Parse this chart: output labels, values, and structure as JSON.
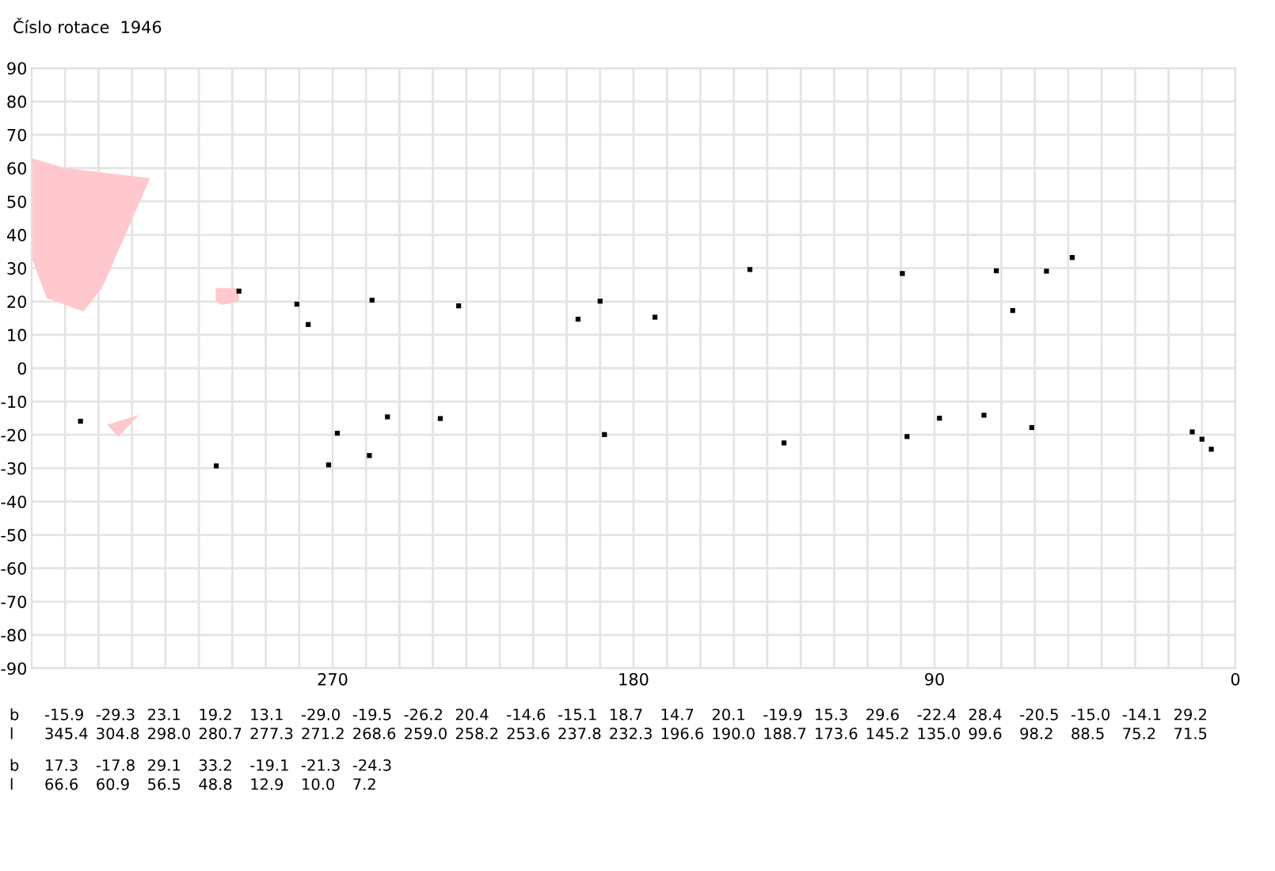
{
  "chart_data": {
    "type": "scatter",
    "title": "Číslo rotace  1946",
    "xlim": [
      360,
      0
    ],
    "xticks": [
      {
        "value": 350,
        "label": null
      },
      {
        "value": 340,
        "label": null
      },
      {
        "value": 330,
        "label": null
      },
      {
        "value": 320,
        "label": null
      },
      {
        "value": 310,
        "label": null
      },
      {
        "value": 300,
        "label": null
      },
      {
        "value": 290,
        "label": null
      },
      {
        "value": 280,
        "label": null
      },
      270,
      {
        "value": 260,
        "label": null
      },
      {
        "value": 250,
        "label": null
      },
      {
        "value": 240,
        "label": null
      },
      {
        "value": 230,
        "label": null
      },
      {
        "value": 220,
        "label": null
      },
      {
        "value": 210,
        "label": null
      },
      {
        "value": 200,
        "label": null
      },
      {
        "value": 190,
        "label": null
      },
      180,
      {
        "value": 170,
        "label": null
      },
      {
        "value": 160,
        "label": null
      },
      {
        "value": 150,
        "label": null
      },
      {
        "value": 140,
        "label": null
      },
      {
        "value": 130,
        "label": null
      },
      {
        "value": 120,
        "label": null
      },
      {
        "value": 110,
        "label": null
      },
      {
        "value": 100,
        "label": null
      },
      90,
      {
        "value": 80,
        "label": null
      },
      {
        "value": 70,
        "label": null
      },
      {
        "value": 60,
        "label": null
      },
      {
        "value": 50,
        "label": null
      },
      {
        "value": 40,
        "label": null
      },
      {
        "value": 30,
        "label": null
      },
      {
        "value": 20,
        "label": null
      },
      {
        "value": 10,
        "label": null
      },
      0
    ],
    "ylim": [
      -90,
      90
    ],
    "yticks": [
      -90,
      -80,
      -70,
      -60,
      -50,
      -40,
      -30,
      -20,
      -10,
      0,
      10,
      20,
      30,
      40,
      50,
      60,
      70,
      80,
      90
    ],
    "grid": true,
    "annotations": [
      "b",
      "-15.9",
      "-29.3",
      "23.1",
      "19.2",
      "13.1",
      "-29.0",
      "-19.5",
      "-26.2",
      "20.4",
      "-14.6",
      "-15.1",
      "18.7",
      "14.7",
      "20.1",
      "-19.9",
      "15.3",
      "29.6",
      "-22.4",
      "28.4",
      "-20.5",
      "-15.0",
      "-14.1",
      "29.2",
      "l",
      "345.4",
      "304.8",
      "298.0",
      "280.7",
      "277.3",
      "271.2",
      "268.6",
      "259.0",
      "258.2",
      "253.6",
      "237.8",
      "232.3",
      "196.6",
      "190.0",
      "188.7",
      "173.6",
      "145.2",
      "135.0",
      "99.6",
      "98.2",
      "88.5",
      "75.2",
      "71.5",
      "b",
      "17.3",
      "-17.8",
      "29.1",
      "33.2",
      "-19.1",
      "-21.3",
      "-24.3",
      "l",
      "66.6",
      "60.9",
      "56.5",
      "48.8",
      "12.9",
      "10.0",
      "7.2"
    ],
    "series": [
      {
        "type": "area",
        "color": "#ffc8cc",
        "x": [
          360,
          350,
          324.6,
          339,
          344.6,
          355.5,
          360
        ],
        "values": [
          63,
          60,
          57,
          24,
          17,
          21,
          33
        ]
      },
      {
        "type": "area",
        "color": "#ffc8cc",
        "x": [
          305,
          298,
          298,
          303,
          305
        ],
        "values": [
          24,
          24,
          20,
          19,
          20
        ]
      },
      {
        "type": "area",
        "color": "#ffc8cc",
        "x": [
          337.5,
          328,
          334
        ],
        "values": [
          -17,
          -14,
          -20.5
        ]
      },
      {
        "type": "scatter",
        "color": "#000000",
        "marker": "square",
        "x": [
          345.4,
          304.8,
          298.0,
          280.7,
          277.3,
          271.2,
          268.6,
          259.0,
          258.2,
          253.6,
          237.8,
          232.3,
          196.6,
          190.0,
          188.7,
          173.6,
          145.2,
          135.0,
          99.6,
          98.2,
          88.5,
          75.2,
          71.5,
          66.6,
          60.9,
          56.5,
          48.8,
          12.9,
          10.0,
          7.2
        ],
        "values": [
          -15.9,
          -29.3,
          23.1,
          19.2,
          13.1,
          -29.0,
          -19.5,
          -26.2,
          20.4,
          -14.6,
          -15.1,
          18.7,
          14.7,
          20.1,
          -19.9,
          15.3,
          29.6,
          -22.4,
          28.4,
          -20.5,
          -15.0,
          -14.1,
          29.2,
          17.3,
          -17.8,
          29.1,
          33.2,
          -19.1,
          -21.3,
          -24.3
        ]
      }
    ]
  }
}
